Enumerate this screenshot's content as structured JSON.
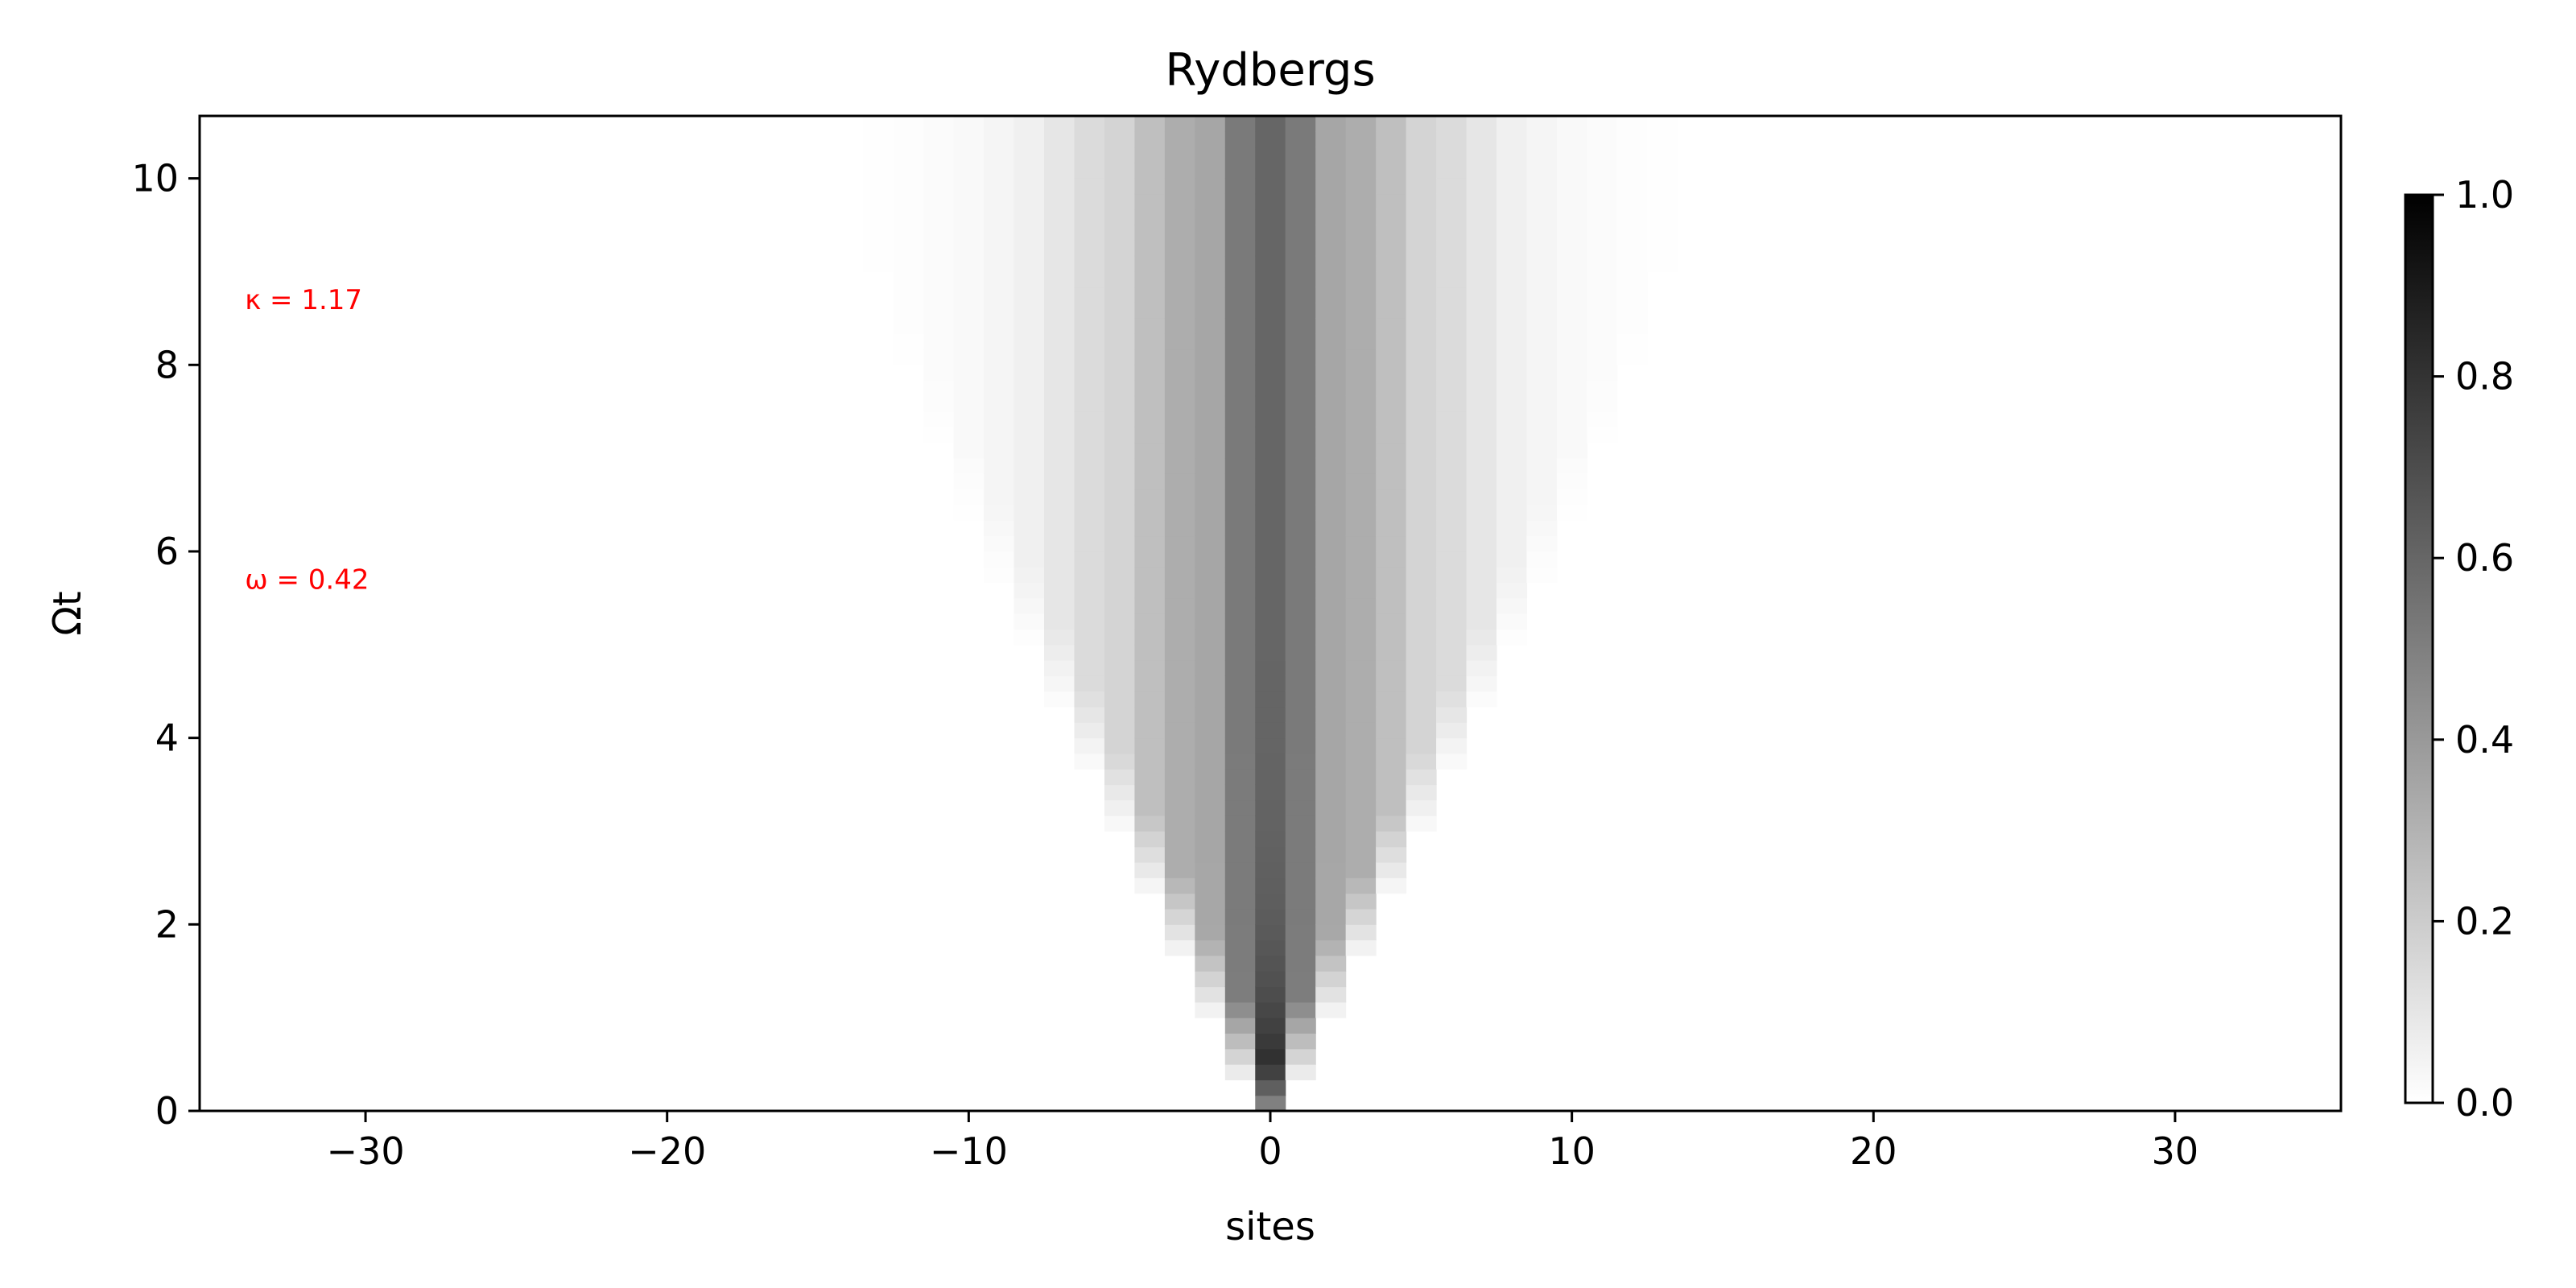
{
  "chart_data": {
    "type": "heatmap",
    "title": "Rydbergs",
    "xlabel": "sites",
    "ylabel": "Ωt",
    "xlim": [
      -35.5,
      35.5
    ],
    "ylim": [
      0,
      10.67
    ],
    "x_ticks": [
      -30,
      -20,
      -10,
      0,
      10,
      20,
      30
    ],
    "x_tick_labels": [
      "−30",
      "−20",
      "−10",
      "0",
      "10",
      "20",
      "30"
    ],
    "y_ticks": [
      0,
      2,
      4,
      6,
      8,
      10
    ],
    "y_tick_labels": [
      "0",
      "2",
      "4",
      "6",
      "8",
      "10"
    ],
    "sites": {
      "min": -35,
      "max": 35
    },
    "time": {
      "min": 0,
      "max": 10.67,
      "steps": 64
    },
    "colormap": "gray_r",
    "colorbar": {
      "range": [
        0,
        1
      ],
      "ticks": [
        0.0,
        0.2,
        0.4,
        0.6,
        0.8,
        1.0
      ],
      "tick_labels": [
        "0.0",
        "0.2",
        "0.4",
        "0.6",
        "0.8",
        "1.0"
      ]
    },
    "center_column_levels": {
      "early": 1.0,
      "late": 0.6
    },
    "spread_levels": [
      {
        "offset": 0,
        "value": 0.62
      },
      {
        "offset": 1,
        "value": 0.52
      },
      {
        "offset": 2,
        "value": 0.35
      },
      {
        "offset": 3,
        "value": 0.32
      },
      {
        "offset": 4,
        "value": 0.25
      },
      {
        "offset": 5,
        "value": 0.17
      },
      {
        "offset": 6,
        "value": 0.14
      },
      {
        "offset": 7,
        "value": 0.1
      },
      {
        "offset": 8,
        "value": 0.06
      },
      {
        "offset": 9,
        "value": 0.04
      },
      {
        "offset": 10,
        "value": 0.025
      },
      {
        "offset": 11,
        "value": 0.015
      },
      {
        "offset": 12,
        "value": 0.008
      },
      {
        "offset": 13,
        "value": 0.004
      }
    ],
    "annotations": [
      {
        "text": "κ = 1.17",
        "x": -34,
        "y": 8.7
      },
      {
        "text": "ω = 0.42",
        "x": -34,
        "y": 5.7
      }
    ]
  }
}
